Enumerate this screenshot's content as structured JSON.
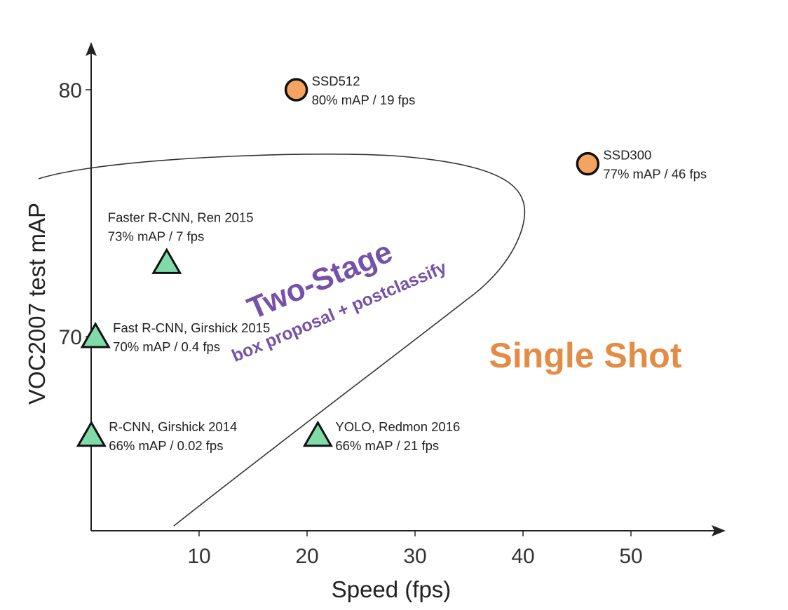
{
  "chart_data": {
    "type": "scatter",
    "xlabel": "Speed (fps)",
    "ylabel": "VOC2007 test mAP",
    "xlim": [
      0,
      56
    ],
    "ylim": [
      62,
      80
    ],
    "xticks": [
      10,
      20,
      30,
      40,
      50
    ],
    "yticks": [
      70,
      80
    ],
    "grid": false,
    "points": [
      {
        "model": "SSD512",
        "stats": "80% mAP / 19 fps",
        "x": 19,
        "y": 80,
        "marker": "circle",
        "color": "#f4a460"
      },
      {
        "model": "SSD300",
        "stats": "77% mAP / 46 fps",
        "x": 46,
        "y": 77,
        "marker": "circle",
        "color": "#f4a460"
      },
      {
        "model": "Faster R-CNN, Ren 2015",
        "stats": "73% mAP / 7 fps",
        "x": 7,
        "y": 73,
        "marker": "triangle",
        "color": "#7fdba8"
      },
      {
        "model": "Fast R-CNN, Girshick 2015",
        "stats": "70% mAP / 0.4 fps",
        "x": 0.4,
        "y": 70,
        "marker": "triangle",
        "color": "#7fdba8"
      },
      {
        "model": "R-CNN, Girshick 2014",
        "stats": "66% mAP / 0.02 fps",
        "x": 0.02,
        "y": 66,
        "marker": "triangle",
        "color": "#7fdba8"
      },
      {
        "model": "YOLO, Redmon 2016",
        "stats": "66% mAP / 21 fps",
        "x": 21,
        "y": 66,
        "marker": "triangle",
        "color": "#7fdba8"
      }
    ],
    "regions": [
      {
        "title": "Two-Stage",
        "subtitle": "box proposal + postclassify",
        "color": "#7651a8"
      },
      {
        "title": "Single Shot",
        "color": "#e38c45"
      }
    ]
  }
}
